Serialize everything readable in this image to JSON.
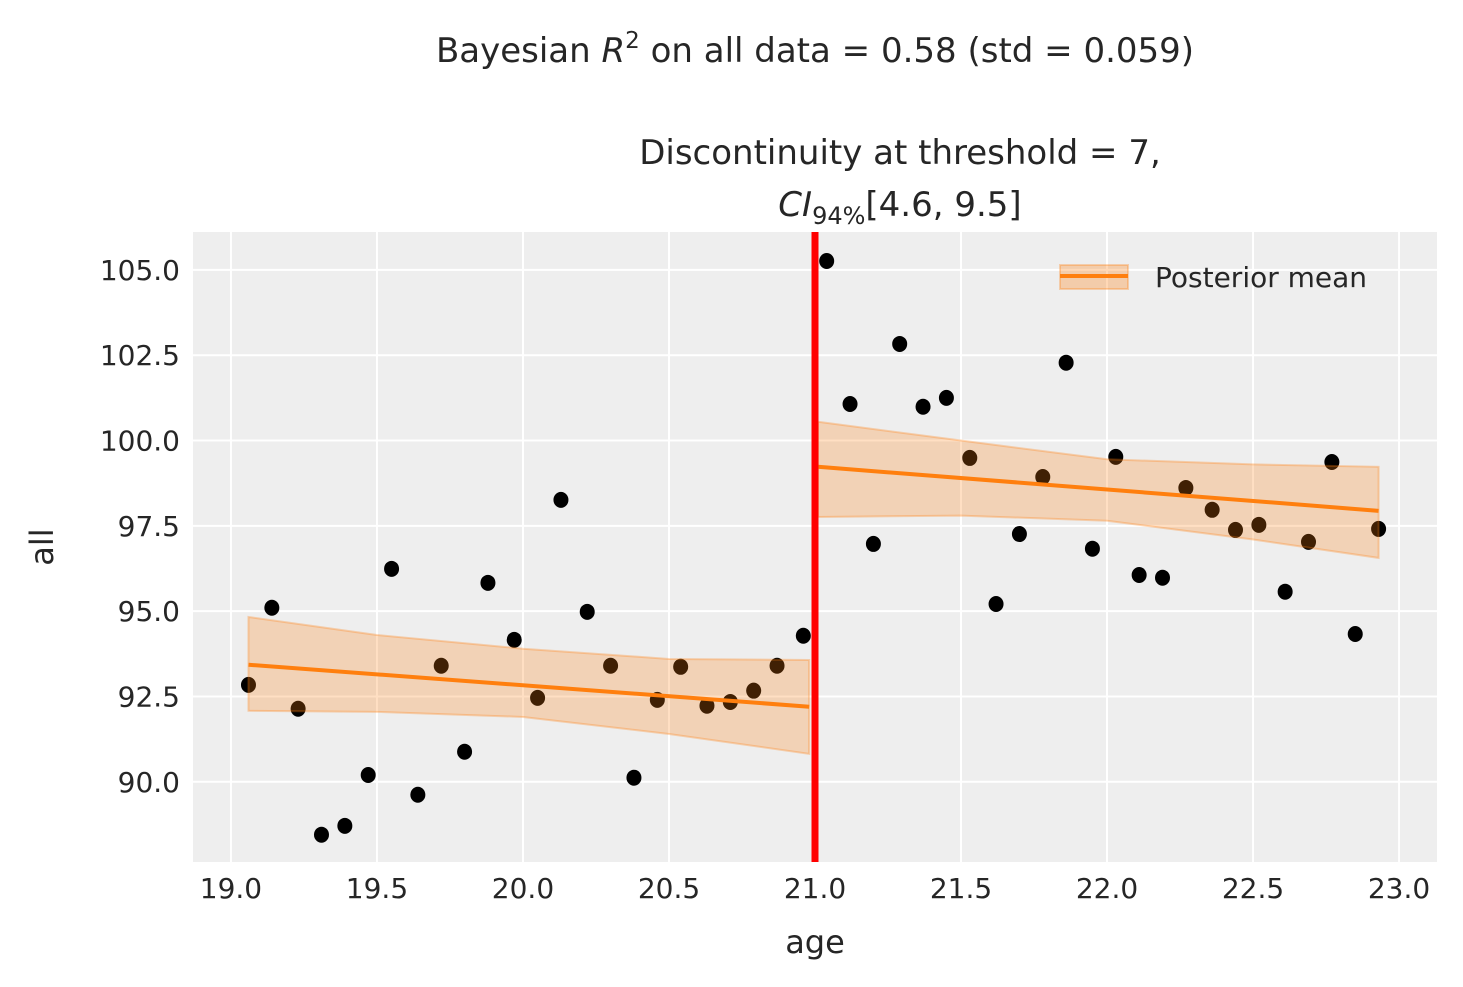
{
  "chart_data": {
    "type": "scatter",
    "suptitle": {
      "prefix": "Bayesian ",
      "symbol": "R",
      "sup": "2",
      "suffix": " on all data = 0.58 (std = 0.059)"
    },
    "title_line1": "Discontinuity at threshold = 7,",
    "title_line2": {
      "symbol": "CI",
      "sub": "94%",
      "suffix": "[4.6, 9.5]"
    },
    "xlabel": "age",
    "ylabel": "all",
    "xlim": [
      18.87,
      23.13
    ],
    "ylim": [
      87.65,
      106.11
    ],
    "xticks": [
      "19.0",
      "19.5",
      "20.0",
      "20.5",
      "21.0",
      "21.5",
      "22.0",
      "22.5",
      "23.0"
    ],
    "yticks": [
      "90.0",
      "92.5",
      "95.0",
      "97.5",
      "100.0",
      "102.5",
      "105.0"
    ],
    "grid": true,
    "legend": {
      "position": "top-right",
      "entries": [
        "Posterior mean"
      ]
    },
    "threshold": 21.0,
    "colors": {
      "points": "#000000",
      "mean": "#ff7f0e",
      "band": "#ff7f0e",
      "threshold": "#ff0000",
      "background": "#eeeeee"
    },
    "points": {
      "x": [
        19.06,
        19.14,
        19.23,
        19.31,
        19.39,
        19.47,
        19.55,
        19.64,
        19.72,
        19.8,
        19.88,
        19.97,
        20.05,
        20.13,
        20.22,
        20.3,
        20.38,
        20.46,
        20.54,
        20.63,
        20.71,
        20.79,
        20.87,
        20.96,
        21.04,
        21.12,
        21.2,
        21.29,
        21.37,
        21.45,
        21.53,
        21.62,
        21.7,
        21.78,
        21.86,
        21.95,
        22.03,
        22.11,
        22.19,
        22.27,
        22.36,
        22.44,
        22.52,
        22.61,
        22.69,
        22.77,
        22.85,
        22.93
      ],
      "y": [
        92.84,
        95.1,
        92.14,
        88.45,
        88.71,
        90.2,
        96.24,
        89.62,
        93.4,
        90.88,
        95.83,
        94.16,
        92.46,
        98.26,
        94.98,
        93.4,
        90.12,
        92.4,
        93.37,
        92.23,
        92.34,
        92.67,
        93.4,
        94.28,
        105.26,
        101.07,
        96.97,
        102.83,
        100.99,
        101.25,
        99.49,
        95.21,
        97.26,
        98.93,
        102.28,
        96.83,
        99.52,
        96.06,
        95.98,
        98.61,
        97.97,
        97.38,
        97.53,
        95.57,
        97.03,
        99.37,
        94.33,
        97.41
      ]
    },
    "series": [
      {
        "name": "Posterior mean",
        "segment": "below threshold",
        "x": [
          19.06,
          20.98
        ],
        "mean": [
          93.43,
          92.2
        ],
        "hdi_x": [
          19.06,
          19.5,
          20.0,
          20.5,
          20.98
        ],
        "hdi_low": [
          92.08,
          92.05,
          91.9,
          91.4,
          90.82
        ],
        "hdi_high": [
          94.83,
          94.3,
          93.9,
          93.6,
          93.57
        ]
      },
      {
        "name": "Posterior mean",
        "segment": "above threshold",
        "x": [
          21.01,
          22.93
        ],
        "mean": [
          99.23,
          97.94
        ],
        "hdi_x": [
          21.01,
          21.5,
          22.0,
          22.5,
          22.93
        ],
        "hdi_low": [
          97.76,
          97.8,
          97.65,
          97.1,
          96.56
        ],
        "hdi_high": [
          100.55,
          100.0,
          99.45,
          99.3,
          99.23
        ]
      }
    ]
  }
}
